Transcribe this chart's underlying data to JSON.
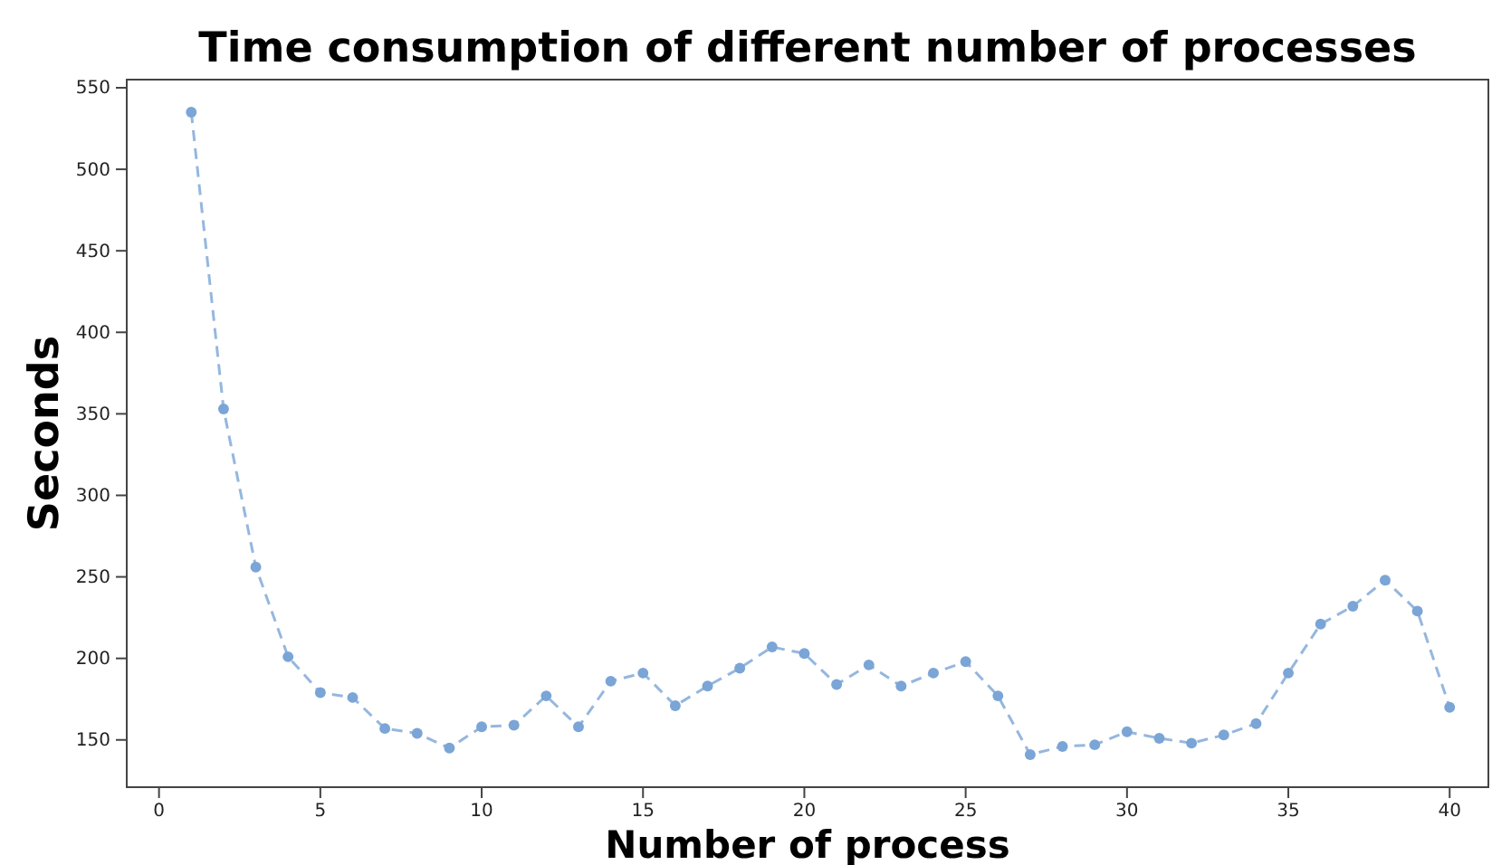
{
  "chart_data": {
    "type": "line",
    "title": "Time consumption of different number of processes",
    "xlabel": "Number of process",
    "ylabel": "Seconds",
    "x": [
      1,
      2,
      3,
      4,
      5,
      6,
      7,
      8,
      9,
      10,
      11,
      12,
      13,
      14,
      15,
      16,
      17,
      18,
      19,
      20,
      21,
      22,
      23,
      24,
      25,
      26,
      27,
      28,
      29,
      30,
      31,
      32,
      33,
      34,
      35,
      36,
      37,
      38,
      39,
      40
    ],
    "series": [
      {
        "color": "#7aa5d6",
        "values": [
          535,
          353,
          256,
          201,
          179,
          176,
          157,
          154,
          145,
          158,
          159,
          177,
          158,
          186,
          191,
          171,
          183,
          194,
          207,
          203,
          184,
          196,
          183,
          191,
          198,
          177,
          141,
          146,
          147,
          155,
          151,
          148,
          153,
          160,
          191,
          221,
          232,
          248,
          229,
          170
        ]
      }
    ],
    "xlim": [
      -1,
      41.2
    ],
    "xticks": [
      0,
      5,
      10,
      15,
      20,
      25,
      30,
      35,
      40
    ],
    "ylim": [
      121,
      555
    ],
    "yticks": [
      150,
      200,
      250,
      300,
      350,
      400,
      450,
      500,
      550
    ],
    "marker": "circle",
    "line_style": "dashed",
    "grid": false
  }
}
